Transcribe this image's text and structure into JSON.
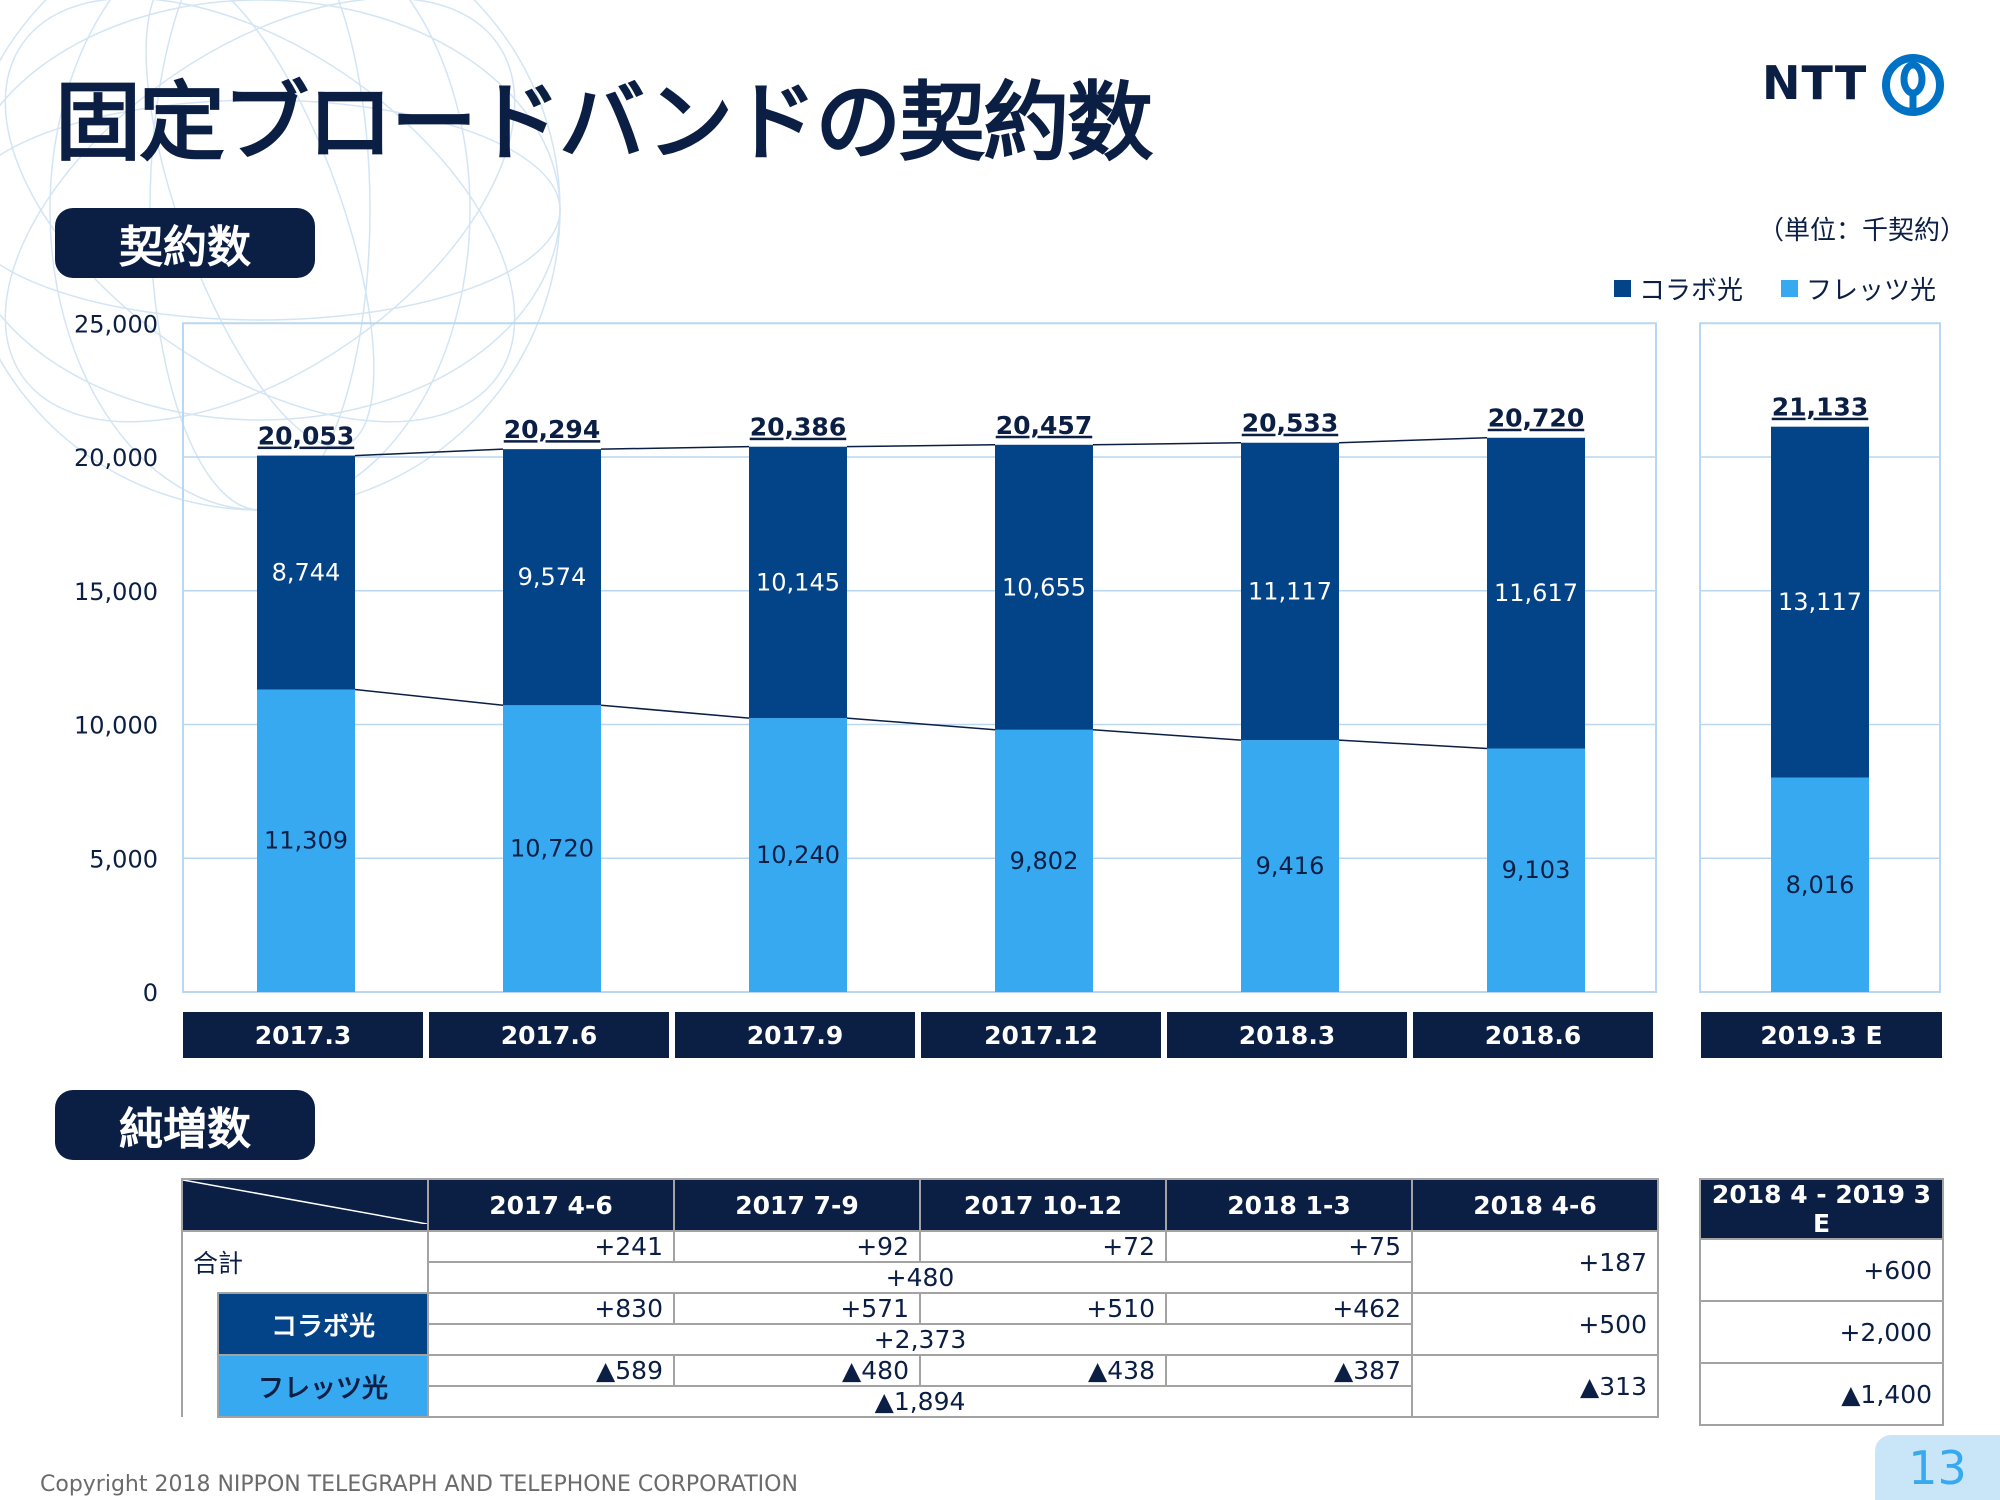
{
  "title": "固定ブロードバンドの契約数",
  "section1_label": "契約数",
  "section2_label": "純増数",
  "unit": "（単位：千契約）",
  "legend": {
    "dark": "コラボ光",
    "light": "フレッツ光"
  },
  "colors": {
    "dark": "#034387",
    "light": "#36a9f0",
    "navy": "#0b1e44"
  },
  "chart_data": {
    "type": "bar",
    "stacked": true,
    "categories": [
      "2017.3",
      "2017.6",
      "2017.9",
      "2017.12",
      "2018.3",
      "2018.6",
      "2019.3 E"
    ],
    "series": [
      {
        "name": "フレッツ光",
        "values": [
          11309,
          10720,
          10240,
          9802,
          9416,
          9103,
          8016
        ]
      },
      {
        "name": "コラボ光",
        "values": [
          8744,
          9574,
          10145,
          10655,
          11117,
          11617,
          13117
        ]
      }
    ],
    "totals": [
      20053,
      20294,
      20386,
      20457,
      20533,
      20720,
      21133
    ],
    "value_labels": {
      "light": [
        "11,309",
        "10,720",
        "10,240",
        "9,802",
        "9,416",
        "9,103",
        "8,016"
      ],
      "dark": [
        "8,744",
        "9,574",
        "10,145",
        "10,655",
        "11,117",
        "11,617",
        "13,117"
      ],
      "totals": [
        "20,053",
        "20,294",
        "20,386",
        "20,457",
        "20,533",
        "20,720",
        "21,133"
      ]
    },
    "yticks": [
      "0",
      "5,000",
      "10,000",
      "15,000",
      "20,000",
      "25,000"
    ],
    "ylim": [
      0,
      25000
    ],
    "grid": true,
    "legend_position": "top-right"
  },
  "net_table": {
    "headers": [
      "2017 4-6",
      "2017 7-9",
      "2017 10-12",
      "2018 1-3",
      "2018 4-6",
      "2018 4 - 2019 3 E"
    ],
    "rows": [
      {
        "label": "合計",
        "quarters": [
          "+241",
          "+92",
          "+72",
          "+75"
        ],
        "sum": "+480",
        "q2018": "+187",
        "fy": "+600"
      },
      {
        "label": "コラボ光",
        "quarters": [
          "+830",
          "+571",
          "+510",
          "+462"
        ],
        "sum": "+2,373",
        "q2018": "+500",
        "fy": "+2,000"
      },
      {
        "label": "フレッツ光",
        "quarters": [
          "▲589",
          "▲480",
          "▲438",
          "▲387"
        ],
        "sum": "▲1,894",
        "q2018": "▲313",
        "fy": "▲1,400"
      }
    ]
  },
  "logo_text": "NTT",
  "copyright": "Copyright 2018 NIPPON TELEGRAPH AND TELEPHONE CORPORATION",
  "page_number": "13"
}
